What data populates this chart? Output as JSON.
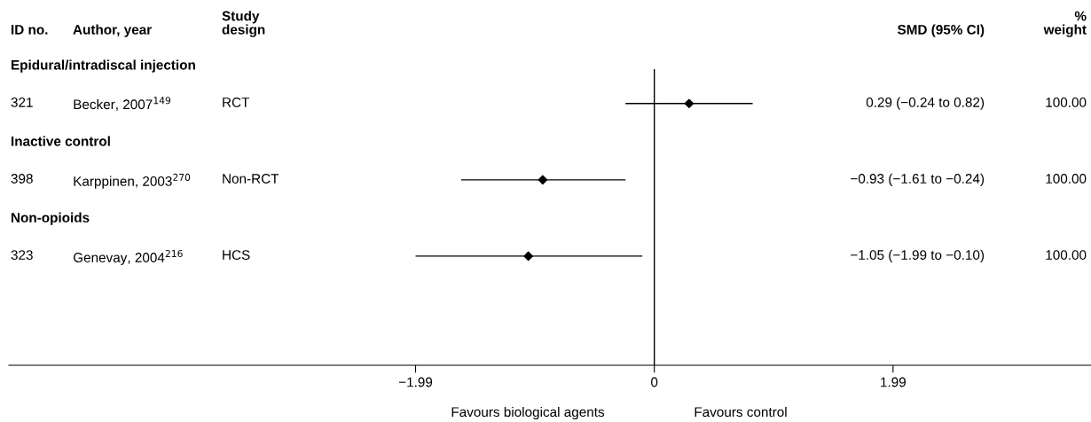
{
  "chart_data": {
    "type": "scatter",
    "categories": [
      "Becker, 2007$^{149}$",
      "Karppinen, 2003$^{270}$",
      "Genevay, 2004$^{216}$"
    ],
    "values": [
      0.29,
      -0.93,
      -1.05
    ],
    "errors": [
      [
        -0.24,
        0.82
      ],
      [
        -1.61,
        -0.24
      ],
      [
        -1.99,
        -0.1
      ]
    ],
    "color": "#000000",
    "marker": "diamond",
    "xlim": [
      -5.38,
      3.64
    ],
    "xticks": [
      {
        "value": -1.99,
        "label": "−1.99"
      },
      {
        "value": 0,
        "label": "0"
      },
      {
        "value": 1.99,
        "label": "1.99"
      }
    ],
    "orientation": "horizontal",
    "ref_lines": [
      {
        "axis": "x",
        "value": 0
      }
    ],
    "grid": false,
    "legend": false,
    "annotations": [
      "ID no.",
      "Author, year",
      "Study\ndesign",
      "SMD (95% CI)",
      "%\nweight",
      "Epidural/intradiscal injection",
      "321",
      "RCT",
      "Inactive control",
      "398",
      "Non-RCT",
      "Non-opioids",
      "323",
      "HCS",
      "100.00",
      "100.00",
      "100.00",
      "0.29 (−0.24 to 0.82)",
      "−0.93 (−1.61 to −0.24)",
      "−1.05 (−1.99 to −0.10)",
      "Favours biological agents",
      "Favours control"
    ]
  }
}
